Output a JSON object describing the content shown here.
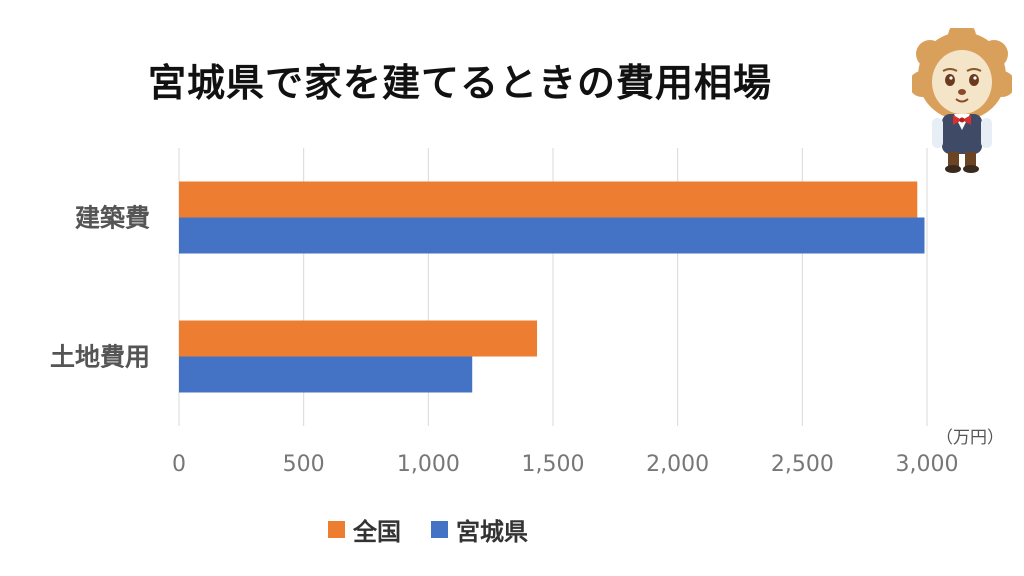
{
  "chart_data": {
    "type": "bar",
    "orientation": "horizontal",
    "title": "宮城県で家を建てるときの費用相場",
    "unit_label": "（万円）",
    "categories": [
      "建築費",
      "土地費用"
    ],
    "series": [
      {
        "name": "全国",
        "color": "#ED7D31",
        "values": [
          2961,
          1436
        ]
      },
      {
        "name": "宮城県",
        "color": "#4472C4",
        "values": [
          2990,
          1176
        ]
      }
    ],
    "xlim": [
      0,
      3000
    ],
    "xticks": [
      0,
      500,
      1000,
      1500,
      2000,
      2500,
      3000
    ],
    "xtick_labels": [
      "0",
      "500",
      "1,000",
      "1,500",
      "2,000",
      "2,500",
      "3,000"
    ],
    "grid": true,
    "legend_position": "bottom"
  },
  "illustration": {
    "icon": "lion-mascot-icon"
  }
}
